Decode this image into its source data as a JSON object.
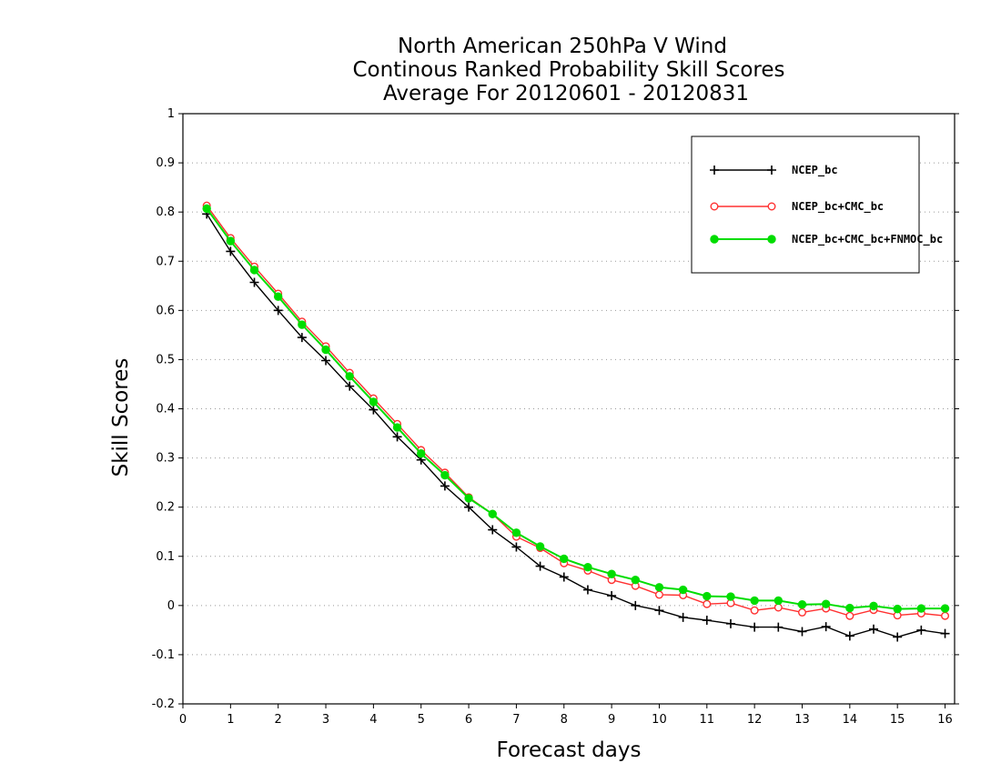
{
  "chart_data": {
    "type": "line",
    "title": [
      "North American 250hPa V Wind",
      "Continous Ranked Probability Skill Scores",
      "Average For 20120601 - 20120831"
    ],
    "xlabel": "Forecast days",
    "ylabel": "Skill Scores",
    "xlim": [
      0,
      16.2
    ],
    "ylim": [
      -0.2,
      1
    ],
    "xticks": [
      0,
      1,
      2,
      3,
      4,
      5,
      6,
      7,
      8,
      9,
      10,
      11,
      12,
      13,
      14,
      15,
      16
    ],
    "yticks": [
      -0.2,
      -0.1,
      0,
      0.1,
      0.2,
      0.3,
      0.4,
      0.5,
      0.6,
      0.7,
      0.8,
      0.9,
      1
    ],
    "ytick_labels": [
      "-0.2",
      "-0.1",
      "0",
      "0.1",
      "0.2",
      "0.3",
      "0.4",
      "0.5",
      "0.6",
      "0.7",
      "0.8",
      "0.9",
      "1"
    ],
    "grid": "horizontal-dotted",
    "legend_position": "top-right",
    "x": [
      0.5,
      1,
      1.5,
      2,
      2.5,
      3,
      3.5,
      4,
      4.5,
      5,
      5.5,
      6,
      6.5,
      7,
      7.5,
      8,
      8.5,
      9,
      9.5,
      10,
      10.5,
      11,
      11.5,
      12,
      12.5,
      13,
      13.5,
      14,
      14.5,
      15,
      15.5,
      16
    ],
    "series": [
      {
        "name": "NCEP_bc",
        "color": "#000000",
        "marker": "plus",
        "values": [
          0.796,
          0.72,
          0.657,
          0.6,
          0.545,
          0.498,
          0.446,
          0.398,
          0.343,
          0.296,
          0.243,
          0.2,
          0.154,
          0.119,
          0.08,
          0.058,
          0.032,
          0.02,
          0.0,
          -0.01,
          -0.024,
          -0.03,
          -0.037,
          -0.044,
          -0.044,
          -0.053,
          -0.043,
          -0.062,
          -0.048,
          -0.064,
          -0.05,
          -0.057
        ]
      },
      {
        "name": "NCEP_bc+CMC_bc",
        "color": "#ff3030",
        "marker": "open-circle",
        "values": [
          0.813,
          0.747,
          0.689,
          0.634,
          0.577,
          0.527,
          0.473,
          0.421,
          0.369,
          0.316,
          0.27,
          0.22,
          0.186,
          0.14,
          0.117,
          0.086,
          0.071,
          0.052,
          0.04,
          0.022,
          0.021,
          0.003,
          0.005,
          -0.01,
          -0.004,
          -0.014,
          -0.006,
          -0.021,
          -0.009,
          -0.02,
          -0.016,
          -0.021
        ]
      },
      {
        "name": "NCEP_bc+CMC_bc+FNMOC_bc",
        "color": "#00dd00",
        "marker": "filled-circle",
        "values": [
          0.807,
          0.741,
          0.682,
          0.628,
          0.571,
          0.52,
          0.466,
          0.414,
          0.362,
          0.309,
          0.265,
          0.218,
          0.186,
          0.148,
          0.12,
          0.095,
          0.078,
          0.064,
          0.052,
          0.037,
          0.032,
          0.019,
          0.018,
          0.01,
          0.01,
          0.002,
          0.003,
          -0.005,
          -0.001,
          -0.007,
          -0.006,
          -0.006
        ]
      }
    ]
  }
}
